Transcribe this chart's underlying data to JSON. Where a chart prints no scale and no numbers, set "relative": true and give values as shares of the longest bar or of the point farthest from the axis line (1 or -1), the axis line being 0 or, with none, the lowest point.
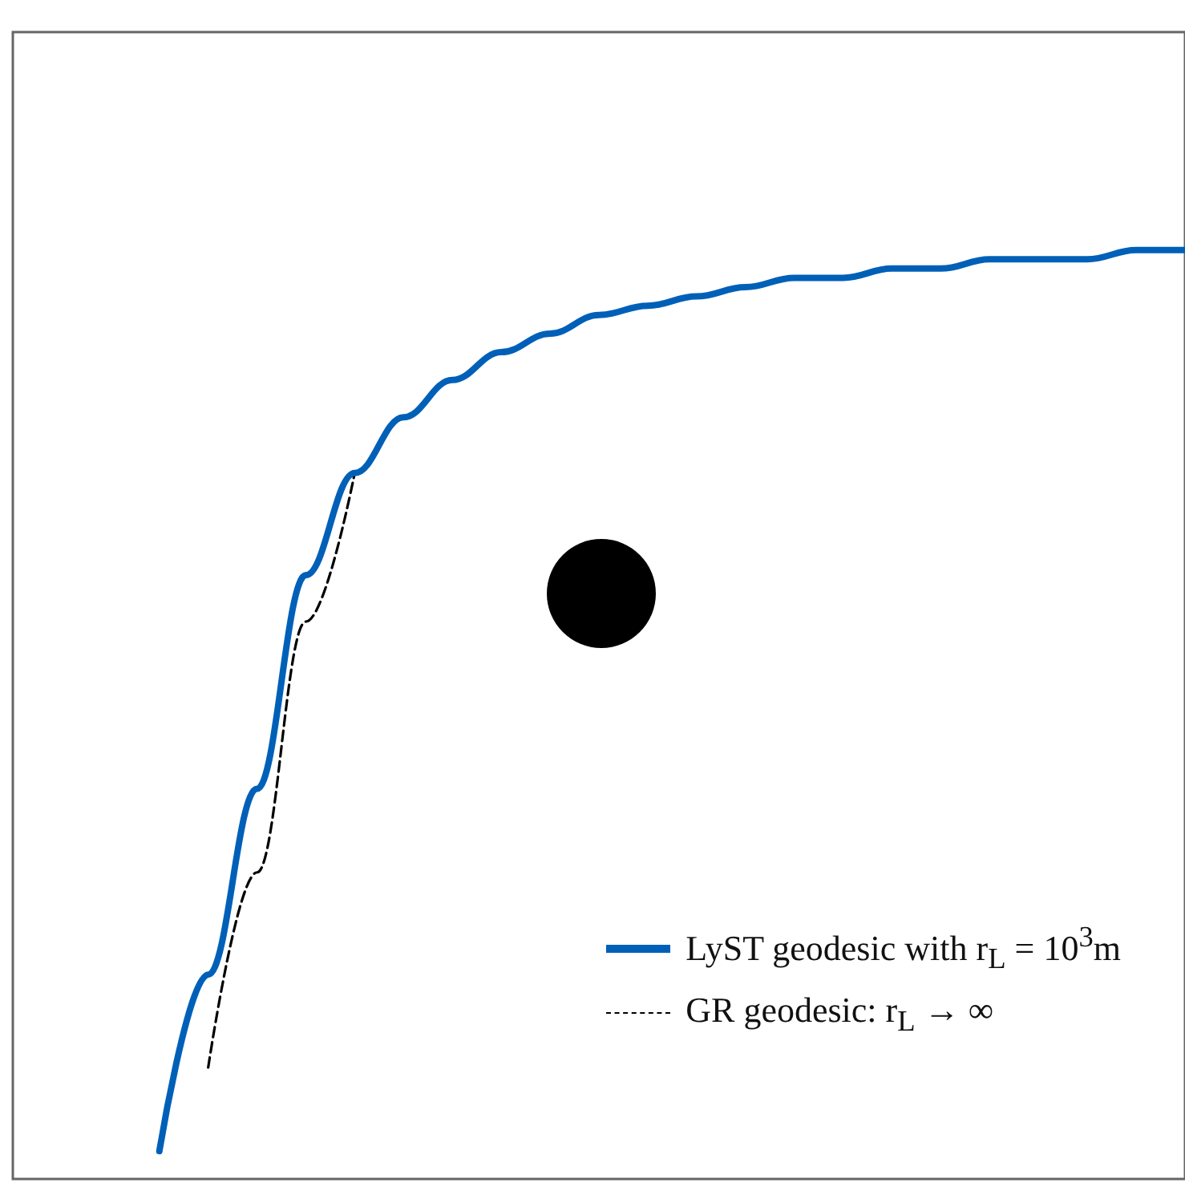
{
  "chart_data": {
    "type": "line",
    "relative": true,
    "legend": "bottom right",
    "grid": false,
    "marker": "none",
    "categories": [
      null,
      null,
      null,
      null,
      null,
      null,
      null,
      null,
      null,
      null,
      null,
      null,
      null,
      null,
      null,
      null,
      null,
      null,
      null,
      null,
      null,
      null,
      null,
      null,
      null
    ],
    "series": [
      {
        "name": "LyST geodesic with r$_{L}$ = 10$^{3}$m",
        "color": "#0060b8",
        "line_style": "solid",
        "values": [
          null,
          null,
          null,
          0.03,
          0.22,
          0.42,
          0.65,
          0.76,
          0.82,
          0.86,
          0.89,
          0.91,
          0.93,
          0.94,
          0.95,
          0.96,
          0.97,
          0.97,
          0.98,
          0.98,
          0.99,
          0.99,
          0.99,
          1.0,
          1.0
        ]
      },
      {
        "name": "GR geodesic: r$_{L}$ → ∞",
        "color": "#000000",
        "line_style": "dashed",
        "values": [
          null,
          null,
          null,
          null,
          0.12,
          0.33,
          0.6,
          0.76,
          null,
          null,
          null,
          null,
          null,
          null,
          null,
          null,
          null,
          null,
          null,
          null,
          null,
          null,
          null,
          null,
          null
        ]
      }
    ]
  }
}
